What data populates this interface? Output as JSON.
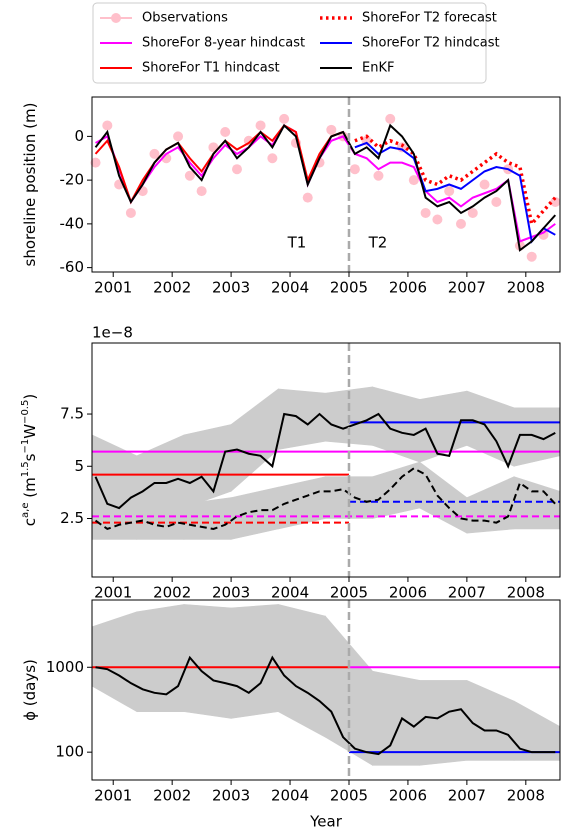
{
  "chart_data": [
    {
      "type": "line",
      "xlim": [
        2000.64,
        2008.58
      ],
      "xticks": [
        2001,
        2002,
        2003,
        2004,
        2005,
        2006,
        2007,
        2008
      ],
      "ylim": [
        -62,
        18
      ],
      "yticks": [
        -60,
        -40,
        -20,
        0
      ],
      "ylabel": [
        {
          "base": "shoreline position (m)"
        }
      ],
      "vline": 2005,
      "vline_color": "#aaaaaa",
      "annotations": [
        "T1",
        "T2"
      ],
      "legend": "top",
      "x": [
        2000.7,
        2000.9,
        2001.1,
        2001.3,
        2001.5,
        2001.7,
        2001.9,
        2002.1,
        2002.3,
        2002.5,
        2002.7,
        2002.9,
        2003.1,
        2003.3,
        2003.5,
        2003.7,
        2003.9,
        2004.1,
        2004.3,
        2004.5,
        2004.7,
        2004.9,
        2005.1,
        2005.3,
        2005.5,
        2005.7,
        2005.9,
        2006.1,
        2006.3,
        2006.5,
        2006.7,
        2006.9,
        2007.1,
        2007.3,
        2007.5,
        2007.7,
        2007.9,
        2008.1,
        2008.3,
        2008.5
      ],
      "series": [
        {
          "name": "Observations",
          "color": "#ffc0cb",
          "style": "markers",
          "values": [
            -12,
            5,
            -22,
            -35,
            -25,
            -8,
            -10,
            0,
            -18,
            -25,
            -5,
            2,
            -15,
            -2,
            5,
            -10,
            8,
            -3,
            -28,
            -12,
            3,
            0,
            -15,
            -2,
            -18,
            8,
            -5,
            -20,
            -35,
            -38,
            -25,
            -40,
            -35,
            -22,
            -30,
            -15,
            -50,
            -55,
            -45,
            -30
          ]
        },
        {
          "name": "ShoreFor 8-year hindcast",
          "color": "#ff00ff",
          "style": "solid",
          "values": [
            -3,
            0,
            -15,
            -30,
            -22,
            -14,
            -8,
            -5,
            -12,
            -18,
            -10,
            -4,
            -8,
            -5,
            0,
            -4,
            5,
            2,
            -22,
            -10,
            -2,
            0,
            -8,
            -10,
            -15,
            -12,
            -12,
            -14,
            -25,
            -30,
            -28,
            -32,
            -28,
            -26,
            -24,
            -20,
            -48,
            -46,
            -44,
            -40
          ]
        },
        {
          "name": "ShoreFor T1 hindcast",
          "color": "#ff0000",
          "style": "solid",
          "x": [
            2000.7,
            2000.9,
            2001.1,
            2001.3,
            2001.5,
            2001.7,
            2001.9,
            2002.1,
            2002.3,
            2002.5,
            2002.7,
            2002.9,
            2003.1,
            2003.3,
            2003.5,
            2003.7,
            2003.9,
            2004.1,
            2004.3,
            2004.5,
            2004.7,
            2004.9
          ],
          "values": [
            -8,
            -2,
            -14,
            -30,
            -20,
            -12,
            -6,
            -3,
            -10,
            -16,
            -8,
            -2,
            -6,
            -3,
            2,
            -2,
            5,
            2,
            -20,
            -8,
            0,
            2
          ]
        },
        {
          "name": "ShoreFor T2 forecast",
          "color": "#ff0000",
          "style": "dotted",
          "x": [
            2005.1,
            2005.3,
            2005.5,
            2005.7,
            2005.9,
            2006.1,
            2006.3,
            2006.5,
            2006.7,
            2006.9,
            2007.1,
            2007.3,
            2007.5,
            2007.7,
            2007.9,
            2008.1,
            2008.3,
            2008.5
          ],
          "values": [
            -2,
            0,
            -5,
            -2,
            -4,
            -8,
            -20,
            -22,
            -18,
            -20,
            -16,
            -12,
            -8,
            -12,
            -14,
            -40,
            -34,
            -28
          ]
        },
        {
          "name": "ShoreFor T2 hindcast",
          "color": "#0000ff",
          "style": "solid",
          "x": [
            2005.1,
            2005.3,
            2005.5,
            2005.7,
            2005.9,
            2006.1,
            2006.3,
            2006.5,
            2006.7,
            2006.9,
            2007.1,
            2007.3,
            2007.5,
            2007.7,
            2007.9,
            2008.1,
            2008.3,
            2008.5
          ],
          "values": [
            -5,
            -3,
            -8,
            -5,
            -6,
            -10,
            -25,
            -24,
            -22,
            -24,
            -20,
            -16,
            -14,
            -15,
            -18,
            -48,
            -42,
            -45
          ]
        },
        {
          "name": "EnKF",
          "color": "#000000",
          "style": "solid",
          "values": [
            -5,
            2,
            -18,
            -30,
            -22,
            -12,
            -6,
            -3,
            -14,
            -20,
            -8,
            -2,
            -10,
            -5,
            2,
            -5,
            5,
            0,
            -22,
            -10,
            0,
            2,
            -8,
            -5,
            -10,
            5,
            0,
            -8,
            -28,
            -32,
            -30,
            -35,
            -32,
            -28,
            -25,
            -20,
            -52,
            -48,
            -42,
            -36
          ]
        }
      ]
    },
    {
      "type": "line",
      "xlim": [
        2000.64,
        2008.58
      ],
      "xticks": [
        2001,
        2002,
        2003,
        2004,
        2005,
        2006,
        2007,
        2008
      ],
      "ylim": [
        -0.3,
        10.9
      ],
      "yticks": [
        2.5,
        5.0,
        7.5
      ],
      "offset_label": "1e−8",
      "ylabel": [
        {
          "base": "c",
          "sup": "a,e"
        },
        {
          "base": " (m",
          "sup": "1.5"
        },
        {
          "base": "s",
          "sup": "−1"
        },
        {
          "base": "W",
          "sup": "−0.5"
        },
        {
          "base": ")"
        }
      ],
      "vline": 2005,
      "vline_color": "#aaaaaa",
      "x": [
        2000.7,
        2000.9,
        2001.1,
        2001.3,
        2001.5,
        2001.7,
        2001.9,
        2002.1,
        2002.3,
        2002.5,
        2002.7,
        2002.9,
        2003.1,
        2003.3,
        2003.5,
        2003.7,
        2003.9,
        2004.1,
        2004.3,
        2004.5,
        2004.7,
        2004.9,
        2005.1,
        2005.3,
        2005.5,
        2005.7,
        2005.9,
        2006.1,
        2006.3,
        2006.5,
        2006.7,
        2006.9,
        2007.1,
        2007.3,
        2007.5,
        2007.7,
        2007.9,
        2008.1,
        2008.3,
        2008.5
      ],
      "series": [
        {
          "style": "band",
          "color": "#cccccc",
          "x": [
            2000.64,
            2001.4,
            2002.2,
            2003.0,
            2003.8,
            2004.6,
            2005.4,
            2006.2,
            2007.0,
            2007.8,
            2008.58
          ],
          "lower": [
            3.0,
            2.0,
            3.0,
            3.8,
            5.8,
            6.2,
            6.0,
            5.2,
            6.0,
            5.0,
            5.5
          ],
          "upper": [
            6.5,
            5.5,
            6.5,
            7.0,
            8.7,
            8.5,
            8.8,
            8.2,
            8.6,
            7.8,
            7.8
          ]
        },
        {
          "style": "band",
          "color": "#cccccc",
          "x": [
            2000.64,
            2001.4,
            2002.2,
            2003.0,
            2003.8,
            2004.6,
            2005.4,
            2006.2,
            2007.0,
            2007.8,
            2008.58
          ],
          "lower": [
            1.5,
            1.5,
            1.5,
            1.5,
            2.0,
            2.5,
            2.5,
            3.0,
            1.8,
            2.0,
            2.0
          ],
          "upper": [
            3.5,
            3.2,
            3.2,
            3.5,
            4.0,
            4.5,
            4.5,
            5.2,
            3.5,
            4.5,
            3.8
          ]
        },
        {
          "color": "#ff0000",
          "style": "solid",
          "x": [
            2000.64,
            2005
          ],
          "values": [
            4.6,
            4.6
          ]
        },
        {
          "color": "#ff00ff",
          "style": "solid",
          "x": [
            2000.64,
            2008.58
          ],
          "values": [
            5.7,
            5.7
          ]
        },
        {
          "color": "#0000ff",
          "style": "solid",
          "x": [
            2005,
            2008.58
          ],
          "values": [
            7.1,
            7.1
          ]
        },
        {
          "color": "#ff0000",
          "style": "dashed",
          "x": [
            2000.64,
            2005
          ],
          "values": [
            2.3,
            2.3
          ]
        },
        {
          "color": "#ff00ff",
          "style": "dashed",
          "x": [
            2000.64,
            2008.58
          ],
          "values": [
            2.6,
            2.6
          ]
        },
        {
          "color": "#0000ff",
          "style": "dashed",
          "x": [
            2005,
            2008.58
          ],
          "values": [
            3.3,
            3.3
          ]
        },
        {
          "color": "#000000",
          "style": "solid",
          "values": [
            4.5,
            3.2,
            3.0,
            3.5,
            3.8,
            4.2,
            4.2,
            4.4,
            4.2,
            4.5,
            3.8,
            5.7,
            5.8,
            5.6,
            5.5,
            5.0,
            7.5,
            7.4,
            7.0,
            7.5,
            7.0,
            6.8,
            7.0,
            7.2,
            7.5,
            6.8,
            6.6,
            6.5,
            6.8,
            5.6,
            5.5,
            7.2,
            7.2,
            7.0,
            6.2,
            5.0,
            6.5,
            6.5,
            6.3,
            6.6
          ]
        },
        {
          "color": "#000000",
          "style": "dashed",
          "values": [
            2.4,
            2.0,
            2.2,
            2.3,
            2.4,
            2.2,
            2.1,
            2.3,
            2.2,
            2.1,
            2.0,
            2.2,
            2.6,
            2.8,
            2.9,
            2.9,
            3.2,
            3.4,
            3.6,
            3.8,
            3.8,
            3.9,
            3.5,
            3.3,
            3.4,
            3.9,
            4.5,
            4.9,
            4.6,
            3.6,
            3.0,
            2.5,
            2.4,
            2.4,
            2.3,
            2.6,
            4.2,
            3.8,
            3.8,
            3.2
          ]
        }
      ]
    },
    {
      "type": "line",
      "xlim": [
        2000.64,
        2008.58
      ],
      "xticks": [
        2001,
        2002,
        2003,
        2004,
        2005,
        2006,
        2007,
        2008
      ],
      "xlabel": "Year",
      "ylim": [
        47,
        6200
      ],
      "ylog": true,
      "yticks": [
        100,
        1000
      ],
      "ylabel": [
        {
          "base": "ϕ (days)"
        }
      ],
      "vline": 2005,
      "vline_color": "#aaaaaa",
      "x": [
        2000.7,
        2000.9,
        2001.1,
        2001.3,
        2001.5,
        2001.7,
        2001.9,
        2002.1,
        2002.3,
        2002.5,
        2002.7,
        2002.9,
        2003.1,
        2003.3,
        2003.5,
        2003.7,
        2003.9,
        2004.1,
        2004.3,
        2004.5,
        2004.7,
        2004.9,
        2005.1,
        2005.3,
        2005.5,
        2005.7,
        2005.9,
        2006.1,
        2006.3,
        2006.5,
        2006.7,
        2006.9,
        2007.1,
        2007.3,
        2007.5,
        2007.7,
        2007.9,
        2008.1,
        2008.3,
        2008.5
      ],
      "series": [
        {
          "style": "band",
          "color": "#cccccc",
          "x": [
            2000.64,
            2001.4,
            2002.2,
            2003.0,
            2003.8,
            2004.6,
            2005.4,
            2006.2,
            2007.0,
            2007.8,
            2008.58
          ],
          "lower": [
            600,
            300,
            300,
            250,
            300,
            150,
            70,
            70,
            80,
            80,
            80
          ],
          "upper": [
            3000,
            4500,
            5500,
            5000,
            5500,
            4000,
            900,
            700,
            700,
            400,
            200
          ]
        },
        {
          "color": "#ff0000",
          "style": "solid",
          "x": [
            2000.64,
            2005
          ],
          "values": [
            1000,
            1000
          ]
        },
        {
          "color": "#ff00ff",
          "style": "solid",
          "x": [
            2005,
            2008.58
          ],
          "values": [
            1000,
            1000
          ]
        },
        {
          "color": "#0000ff",
          "style": "solid",
          "x": [
            2005,
            2008.58
          ],
          "values": [
            100,
            100
          ]
        },
        {
          "color": "#000000",
          "style": "solid",
          "values": [
            1000,
            950,
            800,
            650,
            550,
            500,
            480,
            600,
            1300,
            900,
            700,
            650,
            600,
            500,
            650,
            1300,
            800,
            600,
            500,
            400,
            300,
            150,
            110,
            100,
            95,
            120,
            250,
            200,
            260,
            250,
            300,
            320,
            220,
            180,
            180,
            160,
            110,
            100,
            100,
            100
          ]
        }
      ]
    }
  ]
}
